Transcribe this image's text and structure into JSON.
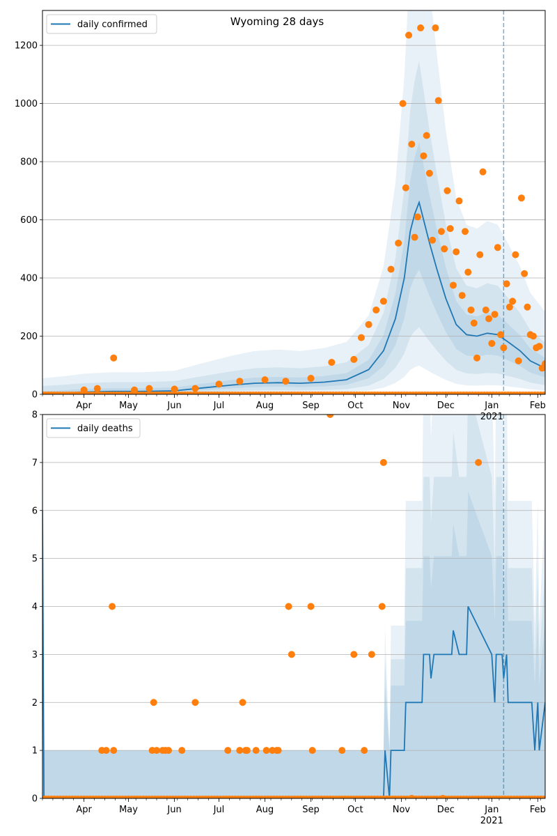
{
  "figure": {
    "title": "Wyoming 28 days"
  },
  "chart_data": [
    {
      "type": "line",
      "title": "Wyoming 28 days",
      "xlabel": "",
      "ylabel": "",
      "ylim": [
        0,
        1320
      ],
      "xlim": [
        "2020-03-04",
        "2021-02-06"
      ],
      "grid": "y",
      "legend_position": "top-left",
      "forecast_start": "2021-01-09",
      "yticks": [
        0,
        200,
        400,
        600,
        800,
        1000,
        1200
      ],
      "xtick_labels": [
        {
          "date": "2020-04-01",
          "label": "Apr"
        },
        {
          "date": "2020-05-01",
          "label": "May"
        },
        {
          "date": "2020-06-01",
          "label": "Jun"
        },
        {
          "date": "2020-07-01",
          "label": "Jul"
        },
        {
          "date": "2020-08-01",
          "label": "Aug"
        },
        {
          "date": "2020-09-01",
          "label": "Sep"
        },
        {
          "date": "2020-10-01",
          "label": "Oct"
        },
        {
          "date": "2020-11-01",
          "label": "Nov"
        },
        {
          "date": "2020-12-01",
          "label": "Dec"
        },
        {
          "date": "2021-01-01",
          "label": "Jan"
        },
        {
          "date": "2021-02-01",
          "label": "Feb"
        }
      ],
      "secondary_xtick_label": {
        "date": "2021-01-01",
        "label": "2021"
      },
      "series": [
        {
          "name": "daily confirmed",
          "color": "#1f77b4",
          "x": [
            "2020-03-04",
            "2020-03-20",
            "2020-04-01",
            "2020-04-20",
            "2020-05-10",
            "2020-06-01",
            "2020-06-20",
            "2020-07-10",
            "2020-07-25",
            "2020-08-10",
            "2020-08-25",
            "2020-09-10",
            "2020-09-25",
            "2020-10-10",
            "2020-10-20",
            "2020-10-28",
            "2020-11-03",
            "2020-11-07",
            "2020-11-10",
            "2020-11-13",
            "2020-11-16",
            "2020-11-20",
            "2020-11-25",
            "2020-12-01",
            "2020-12-08",
            "2020-12-15",
            "2020-12-22",
            "2020-12-29",
            "2021-01-05",
            "2021-01-12",
            "2021-01-20",
            "2021-01-27",
            "2021-02-06"
          ],
          "y": [
            2,
            5,
            8,
            10,
            10,
            12,
            22,
            32,
            38,
            40,
            38,
            42,
            50,
            85,
            150,
            260,
            400,
            560,
            620,
            660,
            600,
            520,
            430,
            330,
            240,
            205,
            200,
            210,
            205,
            180,
            150,
            115,
            90
          ]
        },
        {
          "name": "",
          "marker": "o",
          "color": "#ff7f0e",
          "x": [
            "2020-04-01",
            "2020-04-10",
            "2020-04-21",
            "2020-05-05",
            "2020-05-15",
            "2020-06-01",
            "2020-06-15",
            "2020-07-01",
            "2020-07-15",
            "2020-08-01",
            "2020-08-15",
            "2020-09-01",
            "2020-09-15",
            "2020-09-30",
            "2020-10-05",
            "2020-10-10",
            "2020-10-15",
            "2020-10-20",
            "2020-10-25",
            "2020-10-30",
            "2020-11-02",
            "2020-11-04",
            "2020-11-06",
            "2020-11-08",
            "2020-11-10",
            "2020-11-12",
            "2020-11-14",
            "2020-11-16",
            "2020-11-18",
            "2020-11-20",
            "2020-11-22",
            "2020-11-24",
            "2020-11-26",
            "2020-11-28",
            "2020-11-30",
            "2020-12-02",
            "2020-12-04",
            "2020-12-06",
            "2020-12-08",
            "2020-12-10",
            "2020-12-12",
            "2020-12-14",
            "2020-12-16",
            "2020-12-18",
            "2020-12-20",
            "2020-12-22",
            "2020-12-24",
            "2020-12-26",
            "2020-12-28",
            "2020-12-30",
            "2021-01-01",
            "2021-01-03",
            "2021-01-05",
            "2021-01-07",
            "2021-01-09",
            "2021-01-11",
            "2021-01-13",
            "2021-01-15",
            "2021-01-17",
            "2021-01-19",
            "2021-01-21",
            "2021-01-23",
            "2021-01-25",
            "2021-01-27",
            "2021-01-29",
            "2021-01-31",
            "2021-02-02",
            "2021-02-04",
            "2021-02-06"
          ],
          "y": [
            15,
            20,
            125,
            15,
            20,
            18,
            20,
            35,
            45,
            50,
            45,
            55,
            110,
            120,
            195,
            240,
            290,
            320,
            430,
            520,
            1000,
            710,
            1235,
            860,
            540,
            610,
            1260,
            820,
            890,
            760,
            530,
            1260,
            1010,
            560,
            500,
            700,
            570,
            375,
            490,
            665,
            340,
            560,
            420,
            290,
            245,
            125,
            480,
            765,
            290,
            260,
            175,
            275,
            505,
            205,
            160,
            380,
            300,
            320,
            480,
            115,
            675,
            415,
            300,
            205,
            200,
            160,
            165,
            90,
            105
          ]
        }
      ]
    },
    {
      "type": "line",
      "title": "",
      "xlabel": "",
      "ylabel": "",
      "ylim": [
        0,
        8
      ],
      "xlim": [
        "2020-03-04",
        "2021-02-06"
      ],
      "grid": "y",
      "legend_position": "top-left",
      "forecast_start": "2021-01-09",
      "yticks": [
        0,
        1,
        2,
        3,
        4,
        5,
        6,
        7,
        8
      ],
      "xtick_labels": [
        {
          "date": "2020-04-01",
          "label": "Apr"
        },
        {
          "date": "2020-05-01",
          "label": "May"
        },
        {
          "date": "2020-06-01",
          "label": "Jun"
        },
        {
          "date": "2020-07-01",
          "label": "Jul"
        },
        {
          "date": "2020-08-01",
          "label": "Aug"
        },
        {
          "date": "2020-09-01",
          "label": "Sep"
        },
        {
          "date": "2020-10-01",
          "label": "Oct"
        },
        {
          "date": "2020-11-01",
          "label": "Nov"
        },
        {
          "date": "2020-12-01",
          "label": "Dec"
        },
        {
          "date": "2021-01-01",
          "label": "Jan"
        },
        {
          "date": "2021-02-01",
          "label": "Feb"
        }
      ],
      "secondary_xtick_label": {
        "date": "2021-01-01",
        "label": "2021"
      },
      "series": [
        {
          "name": "daily deaths",
          "color": "#1f77b4",
          "x": [
            "2020-03-04",
            "2020-03-05",
            "2020-10-20",
            "2020-10-21",
            "2020-10-24",
            "2020-10-25",
            "2020-11-03",
            "2020-11-04",
            "2020-11-15",
            "2020-11-16",
            "2020-11-20",
            "2020-11-21",
            "2020-11-23",
            "2020-11-24",
            "2020-12-05",
            "2020-12-06",
            "2020-12-10",
            "2020-12-11",
            "2020-12-15",
            "2020-12-16",
            "2021-01-01",
            "2021-01-03",
            "2021-01-04",
            "2021-01-08",
            "2021-01-09",
            "2021-01-11",
            "2021-01-12",
            "2021-01-13",
            "2021-01-28",
            "2021-01-30",
            "2021-02-01",
            "2021-02-02",
            "2021-02-06"
          ],
          "y": [
            6,
            0,
            0,
            1,
            0,
            1,
            1,
            2,
            2,
            3,
            3,
            2.5,
            3,
            3,
            3,
            3.5,
            3,
            3,
            3,
            4,
            3,
            2,
            3,
            3,
            2.5,
            3,
            2,
            2,
            2,
            1,
            2,
            1,
            2
          ]
        },
        {
          "name": "",
          "marker": "o",
          "color": "#ff7f0e",
          "x": [
            "2020-04-13",
            "2020-04-16",
            "2020-04-20",
            "2020-04-21",
            "2020-05-17",
            "2020-05-18",
            "2020-05-20",
            "2020-05-24",
            "2020-05-26",
            "2020-05-28",
            "2020-06-06",
            "2020-06-15",
            "2020-07-07",
            "2020-07-15",
            "2020-07-17",
            "2020-07-19",
            "2020-07-20",
            "2020-07-26",
            "2020-08-02",
            "2020-08-06",
            "2020-08-09",
            "2020-08-10",
            "2020-08-17",
            "2020-08-19",
            "2020-09-01",
            "2020-09-02",
            "2020-09-14",
            "2020-09-22",
            "2020-09-30",
            "2020-10-07",
            "2020-10-12",
            "2020-10-19",
            "2020-10-20",
            "2020-11-08",
            "2020-11-29",
            "2020-12-23"
          ],
          "y": [
            1,
            1,
            4,
            1,
            1,
            2,
            1,
            1,
            1,
            1,
            1,
            2,
            1,
            1,
            2,
            1,
            1,
            1,
            1,
            1,
            1,
            1,
            4,
            3,
            4,
            1,
            8,
            1,
            3,
            1,
            3,
            4,
            7,
            0,
            0,
            7
          ]
        }
      ]
    }
  ]
}
